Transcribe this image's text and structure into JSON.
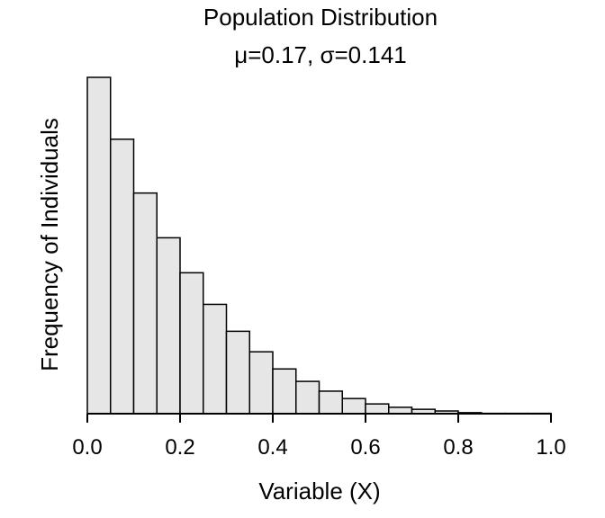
{
  "chart_data": {
    "type": "bar",
    "title": "Population Distribution",
    "subtitle": "μ=0.17, σ=0.141",
    "xlabel": "Variable (X)",
    "ylabel": "Frequency of Individuals",
    "xlim": [
      0,
      1
    ],
    "ylim": [
      0,
      100
    ],
    "x_ticks": [
      0.0,
      0.2,
      0.4,
      0.6,
      0.8,
      1.0
    ],
    "x_tick_labels": [
      "0.0",
      "0.2",
      "0.4",
      "0.6",
      "0.8",
      "1.0"
    ],
    "bin_width": 0.05,
    "bin_starts": [
      0.0,
      0.05,
      0.1,
      0.15,
      0.2,
      0.25,
      0.3,
      0.35,
      0.4,
      0.45,
      0.5,
      0.55,
      0.6,
      0.65,
      0.7,
      0.75,
      0.8,
      0.85,
      0.9,
      0.95
    ],
    "values": [
      100,
      81.6,
      65.6,
      52.3,
      41.9,
      32.5,
      24.5,
      18.4,
      13.3,
      9.6,
      6.7,
      4.5,
      2.9,
      1.9,
      1.3,
      0.8,
      0.3,
      0.1,
      0.1,
      0.1
    ],
    "bar_fill": "#e6e6e6",
    "bar_stroke": "#000000",
    "grid": false,
    "legend": "none"
  }
}
